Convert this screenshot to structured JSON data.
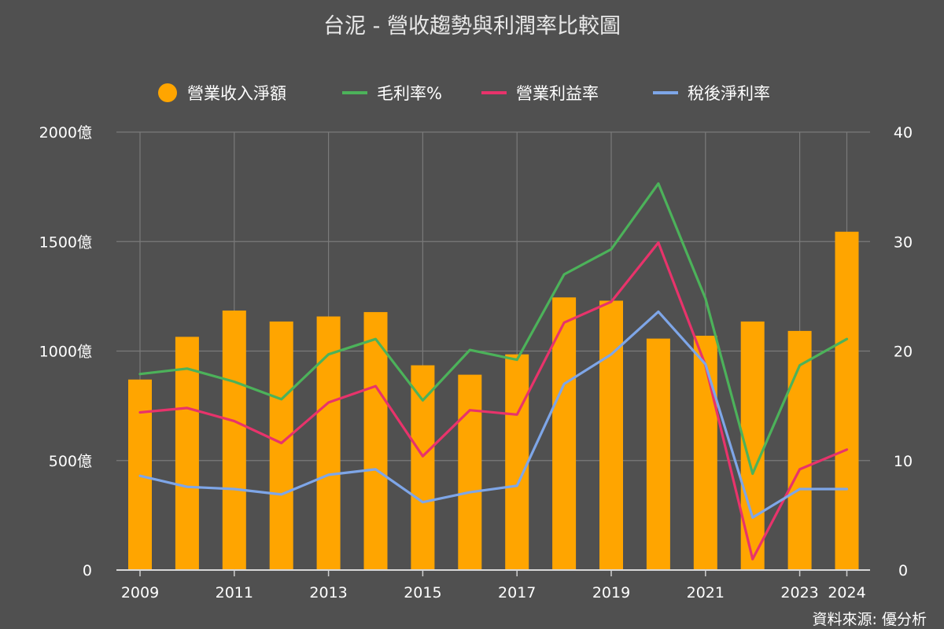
{
  "chart_data": {
    "type": "bar",
    "title": "台泥 - 營收趨勢與利潤率比較圖",
    "source": "資料來源: 優分析",
    "x": [
      2009,
      2010,
      2011,
      2012,
      2013,
      2014,
      2015,
      2016,
      2017,
      2018,
      2019,
      2020,
      2021,
      2022,
      2023,
      2024
    ],
    "x_tick_labels": [
      "2009",
      "2011",
      "2013",
      "2015",
      "2017",
      "2019",
      "2021",
      "2023",
      "2024"
    ],
    "x_tick_values": [
      2009,
      2011,
      2013,
      2015,
      2017,
      2019,
      2021,
      2023,
      2024
    ],
    "left_axis": {
      "ylim": [
        0,
        2000
      ],
      "ticks": [
        0,
        500,
        1000,
        1500,
        2000
      ],
      "tick_labels": [
        "0",
        "500億",
        "1000億",
        "1500億",
        "2000億"
      ]
    },
    "right_axis": {
      "ylim": [
        0,
        40
      ],
      "ticks": [
        0,
        10,
        20,
        30,
        40
      ],
      "tick_labels": [
        "0",
        "10",
        "20",
        "30",
        "40"
      ]
    },
    "grid": true,
    "legend_position": "top",
    "series": [
      {
        "name": "營業收入淨額",
        "kind": "bar",
        "axis": "left",
        "color": "#ffa500",
        "values": [
          870,
          1065,
          1185,
          1135,
          1158,
          1178,
          935,
          892,
          985,
          1245,
          1230,
          1057,
          1070,
          1135,
          1092,
          1545
        ]
      },
      {
        "name": "毛利率%",
        "kind": "line",
        "axis": "right",
        "color": "#4cb25a",
        "values": [
          17.9,
          18.4,
          17.2,
          15.6,
          19.7,
          21.1,
          15.5,
          20.1,
          19.2,
          27.0,
          29.3,
          35.3,
          24.8,
          8.8,
          18.7,
          21.1
        ]
      },
      {
        "name": "營業利益率",
        "kind": "line",
        "axis": "right",
        "color": "#e8336b",
        "values": [
          14.4,
          14.8,
          13.6,
          11.6,
          15.3,
          16.8,
          10.4,
          14.6,
          14.2,
          22.6,
          24.5,
          29.9,
          18.7,
          1.0,
          9.2,
          11.0
        ]
      },
      {
        "name": "稅後淨利率",
        "kind": "line",
        "axis": "right",
        "color": "#7ea6e8",
        "values": [
          8.6,
          7.6,
          7.4,
          6.9,
          8.7,
          9.2,
          6.2,
          7.1,
          7.7,
          17.0,
          19.7,
          23.6,
          18.8,
          4.8,
          7.4,
          7.4
        ]
      }
    ]
  }
}
